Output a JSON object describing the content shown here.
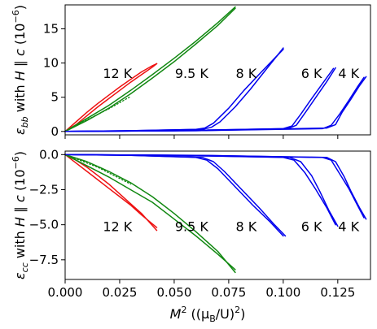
{
  "chart_data": [
    {
      "type": "line",
      "panel": "top",
      "ylabel_parts": {
        "epsilon": "ε",
        "subscript": "bb",
        "with": " with ",
        "h": "H",
        "parallel": " ∥ ",
        "c": "c",
        "unit_open": " (10",
        "unit_exp": "−6",
        "unit_close": ")"
      },
      "xlim": [
        0.0,
        0.14
      ],
      "ylim": [
        -0.5,
        18.5
      ],
      "yticks": [
        0,
        5,
        10,
        15
      ],
      "ytick_labels": [
        "0",
        "5",
        "10",
        "15"
      ],
      "xtick_labels_shown": false,
      "annotations": [
        {
          "text": "12 K",
          "x": 0.024,
          "y": 8.5
        },
        {
          "text": "9.5 K",
          "x": 0.058,
          "y": 8.5
        },
        {
          "text": "8 K",
          "x": 0.083,
          "y": 8.5
        },
        {
          "text": "6 K",
          "x": 0.113,
          "y": 8.5
        },
        {
          "text": "4 K",
          "x": 0.13,
          "y": 8.5
        }
      ],
      "series": [
        {
          "color": "#ee1111",
          "style": "solid",
          "x": [
            0.0,
            0.005,
            0.01,
            0.015,
            0.02,
            0.025,
            0.03,
            0.035,
            0.04,
            0.042
          ],
          "y": [
            0.0,
            1.0,
            2.3,
            3.6,
            4.8,
            6.0,
            7.2,
            8.3,
            9.4,
            9.9
          ]
        },
        {
          "color": "#ee1111",
          "style": "solid",
          "x": [
            0.0,
            0.005,
            0.01,
            0.015,
            0.02,
            0.025,
            0.03,
            0.035,
            0.04,
            0.042
          ],
          "y": [
            0.0,
            1.4,
            2.8,
            4.1,
            5.3,
            6.5,
            7.6,
            8.7,
            9.6,
            9.9
          ]
        },
        {
          "color": "#118811",
          "style": "solid",
          "x": [
            0.0,
            0.01,
            0.02,
            0.03,
            0.04,
            0.05,
            0.06,
            0.07,
            0.078
          ],
          "y": [
            0.0,
            1.6,
            3.4,
            5.5,
            7.8,
            10.2,
            12.8,
            15.5,
            18.0
          ]
        },
        {
          "color": "#118811",
          "style": "solid",
          "x": [
            0.0,
            0.01,
            0.02,
            0.03,
            0.04,
            0.05,
            0.06,
            0.07,
            0.078
          ],
          "y": [
            0.0,
            1.9,
            3.8,
            6.0,
            8.3,
            10.7,
            13.2,
            15.9,
            18.2
          ]
        },
        {
          "color": "#118811",
          "style": "dotted",
          "x": [
            0.0,
            0.005,
            0.01,
            0.015,
            0.02,
            0.025,
            0.03
          ],
          "y": [
            0.0,
            0.9,
            1.7,
            2.5,
            3.3,
            4.2,
            5.1
          ]
        },
        {
          "color": "#0000ee",
          "style": "solid",
          "x": [
            0.0,
            0.03,
            0.06,
            0.064,
            0.068,
            0.075,
            0.082,
            0.09,
            0.1
          ],
          "y": [
            0.0,
            0.1,
            0.3,
            0.5,
            1.2,
            3.4,
            6.0,
            8.7,
            12.0
          ]
        },
        {
          "color": "#0000ee",
          "style": "solid",
          "x": [
            0.0,
            0.03,
            0.063,
            0.067,
            0.071,
            0.078,
            0.085,
            0.092,
            0.1
          ],
          "y": [
            0.0,
            0.1,
            0.3,
            0.6,
            1.4,
            3.6,
            6.2,
            9.0,
            12.2
          ]
        },
        {
          "color": "#0000ee",
          "style": "solid",
          "x": [
            0.0,
            0.05,
            0.1,
            0.104,
            0.108,
            0.113,
            0.118,
            0.123
          ],
          "y": [
            0.0,
            0.1,
            0.4,
            0.8,
            2.5,
            4.8,
            7.0,
            9.2
          ]
        },
        {
          "color": "#0000ee",
          "style": "solid",
          "x": [
            0.0,
            0.05,
            0.102,
            0.106,
            0.11,
            0.115,
            0.12,
            0.124
          ],
          "y": [
            0.0,
            0.1,
            0.4,
            0.9,
            2.7,
            5.0,
            7.3,
            9.3
          ]
        },
        {
          "color": "#0000ee",
          "style": "solid",
          "x": [
            0.0,
            0.06,
            0.118,
            0.122,
            0.126,
            0.13,
            0.134,
            0.137
          ],
          "y": [
            0.0,
            0.1,
            0.4,
            0.9,
            2.6,
            4.5,
            6.5,
            7.9
          ]
        },
        {
          "color": "#0000ee",
          "style": "solid",
          "x": [
            0.0,
            0.06,
            0.12,
            0.124,
            0.127,
            0.131,
            0.135,
            0.138
          ],
          "y": [
            0.0,
            0.1,
            0.5,
            1.0,
            2.8,
            4.7,
            6.7,
            8.0
          ]
        }
      ]
    },
    {
      "type": "line",
      "panel": "bottom",
      "ylabel_parts": {
        "epsilon": "ε",
        "subscript": "cc",
        "with": " with ",
        "h": "H",
        "parallel": " ∥ ",
        "c": "c",
        "unit_open": " (10",
        "unit_exp": "−6",
        "unit_close": ")"
      },
      "xlabel_parts": {
        "m": "M",
        "sup": "2",
        "open": " ((",
        "mu": "μ",
        "sub": "B",
        "slash": "/U)",
        "sup2": "2",
        "close": ")"
      },
      "xlim": [
        0.0,
        0.14
      ],
      "ylim": [
        -8.9,
        0.25
      ],
      "xticks": [
        0.0,
        0.025,
        0.05,
        0.075,
        0.1,
        0.125
      ],
      "xtick_labels": [
        "0.000",
        "0.025",
        "0.050",
        "0.075",
        "0.100",
        "0.125"
      ],
      "yticks": [
        0.0,
        -2.5,
        -5.0,
        -7.5
      ],
      "ytick_labels": [
        "0.0",
        "−2.5",
        "−5.0",
        "−7.5"
      ],
      "annotations": [
        {
          "text": "12 K",
          "x": 0.024,
          "y": -5.1
        },
        {
          "text": "9.5 K",
          "x": 0.058,
          "y": -5.1
        },
        {
          "text": "8 K",
          "x": 0.083,
          "y": -5.1
        },
        {
          "text": "6 K",
          "x": 0.113,
          "y": -5.1
        },
        {
          "text": "4 K",
          "x": 0.13,
          "y": -5.1
        }
      ],
      "series": [
        {
          "color": "#ee1111",
          "style": "solid",
          "x": [
            0.0,
            0.005,
            0.01,
            0.015,
            0.02,
            0.025,
            0.03,
            0.035,
            0.042
          ],
          "y": [
            0.0,
            -0.6,
            -1.2,
            -1.8,
            -2.4,
            -3.0,
            -3.6,
            -4.3,
            -5.2
          ]
        },
        {
          "color": "#ee1111",
          "style": "solid",
          "x": [
            0.0,
            0.005,
            0.01,
            0.015,
            0.02,
            0.025,
            0.03,
            0.035,
            0.042
          ],
          "y": [
            0.0,
            -0.4,
            -0.9,
            -1.5,
            -2.1,
            -2.8,
            -3.5,
            -4.2,
            -5.4
          ]
        },
        {
          "color": "#118811",
          "style": "solid",
          "x": [
            0.0,
            0.01,
            0.02,
            0.03,
            0.04,
            0.05,
            0.06,
            0.07,
            0.078
          ],
          "y": [
            0.0,
            -0.8,
            -1.6,
            -2.5,
            -3.4,
            -4.6,
            -5.8,
            -7.1,
            -8.2
          ]
        },
        {
          "color": "#118811",
          "style": "solid",
          "x": [
            0.0,
            0.01,
            0.02,
            0.03,
            0.04,
            0.05,
            0.06,
            0.07,
            0.078
          ],
          "y": [
            0.0,
            -0.5,
            -1.2,
            -2.0,
            -3.0,
            -4.2,
            -5.5,
            -6.9,
            -8.4
          ]
        },
        {
          "color": "#118811",
          "style": "dotted",
          "x": [
            0.0,
            0.005,
            0.01,
            0.015,
            0.02,
            0.025,
            0.03
          ],
          "y": [
            0.0,
            -0.3,
            -0.6,
            -0.9,
            -1.3,
            -1.7,
            -2.1
          ]
        },
        {
          "color": "#0000ee",
          "style": "solid",
          "x": [
            0.0,
            0.03,
            0.06,
            0.065,
            0.07,
            0.078,
            0.086,
            0.094,
            0.1
          ],
          "y": [
            0.0,
            -0.05,
            -0.2,
            -0.4,
            -1.0,
            -2.3,
            -3.6,
            -4.8,
            -5.8
          ]
        },
        {
          "color": "#0000ee",
          "style": "solid",
          "x": [
            0.0,
            0.03,
            0.063,
            0.068,
            0.073,
            0.081,
            0.089,
            0.096,
            0.101
          ],
          "y": [
            0.0,
            -0.05,
            -0.2,
            -0.5,
            -1.2,
            -2.5,
            -3.8,
            -5.0,
            -5.8
          ]
        },
        {
          "color": "#0000ee",
          "style": "solid",
          "x": [
            0.0,
            0.05,
            0.1,
            0.105,
            0.11,
            0.115,
            0.12,
            0.124
          ],
          "y": [
            0.0,
            -0.05,
            -0.2,
            -0.4,
            -1.3,
            -2.5,
            -3.8,
            -5.0
          ]
        },
        {
          "color": "#0000ee",
          "style": "solid",
          "x": [
            0.0,
            0.05,
            0.103,
            0.108,
            0.113,
            0.117,
            0.121,
            0.125
          ],
          "y": [
            0.0,
            -0.05,
            -0.2,
            -0.5,
            -1.5,
            -2.7,
            -4.0,
            -5.1
          ]
        },
        {
          "color": "#0000ee",
          "style": "solid",
          "x": [
            0.0,
            0.06,
            0.118,
            0.122,
            0.126,
            0.13,
            0.134,
            0.137
          ],
          "y": [
            0.0,
            -0.05,
            -0.2,
            -0.4,
            -1.4,
            -2.4,
            -3.6,
            -4.5
          ]
        },
        {
          "color": "#0000ee",
          "style": "solid",
          "x": [
            0.0,
            0.06,
            0.12,
            0.124,
            0.128,
            0.131,
            0.135,
            0.138
          ],
          "y": [
            0.0,
            -0.05,
            -0.2,
            -0.5,
            -1.6,
            -2.6,
            -3.8,
            -4.6
          ]
        }
      ]
    }
  ]
}
